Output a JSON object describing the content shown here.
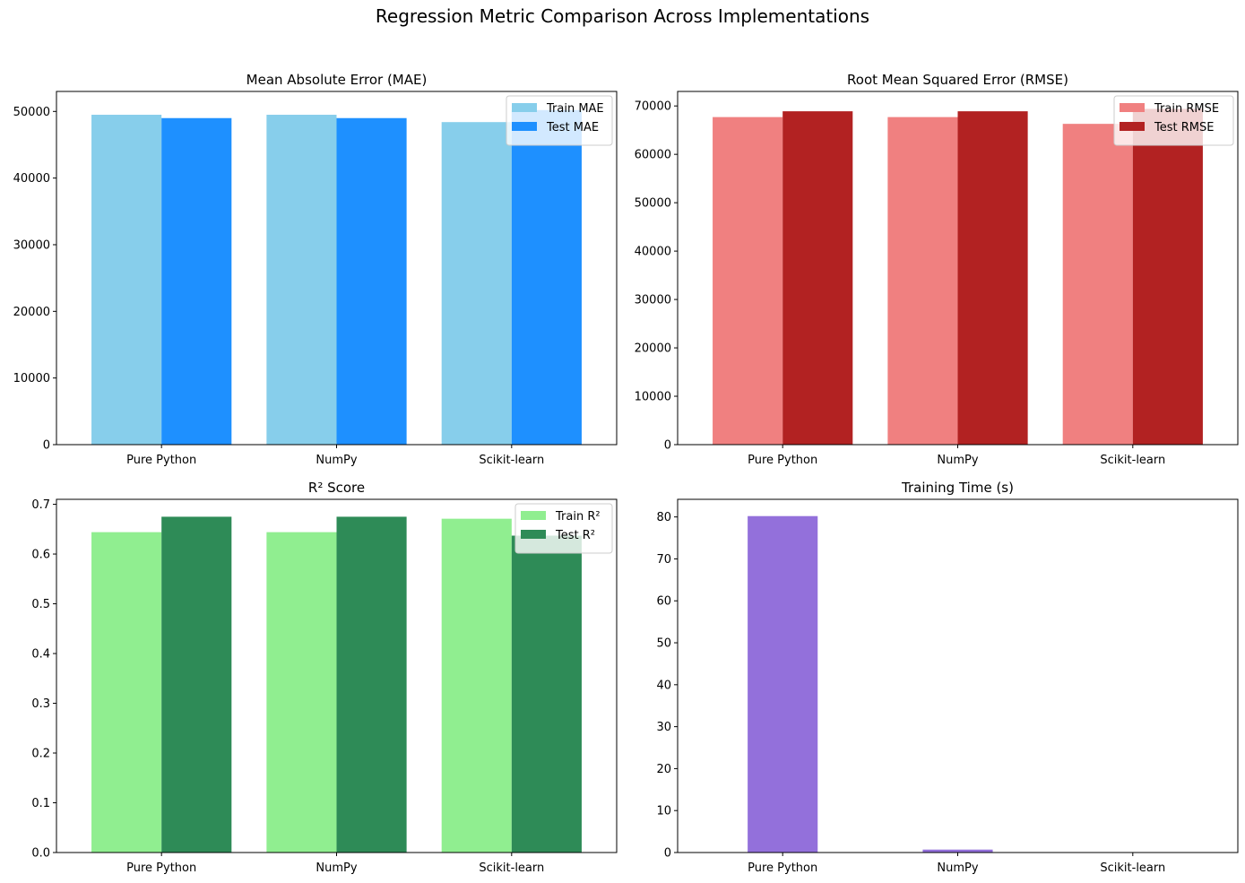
{
  "suptitle": "Regression Metric Comparison Across Implementations",
  "chart_data": [
    {
      "type": "bar",
      "title": "Mean Absolute Error (MAE)",
      "categories": [
        "Pure Python",
        "NumPy",
        "Scikit-learn"
      ],
      "series": [
        {
          "name": "Train MAE",
          "values": [
            49500,
            49500,
            48400
          ],
          "color": "#87CEEB"
        },
        {
          "name": "Test MAE",
          "values": [
            49000,
            49000,
            50200
          ],
          "color": "#1E90FF"
        }
      ],
      "ylim": [
        0,
        53000
      ],
      "yticks": [
        0,
        10000,
        20000,
        30000,
        40000,
        50000
      ],
      "legend": "top-right"
    },
    {
      "type": "bar",
      "title": "Root Mean Squared Error (RMSE)",
      "categories": [
        "Pure Python",
        "NumPy",
        "Scikit-learn"
      ],
      "series": [
        {
          "name": "Train RMSE",
          "values": [
            67700,
            67700,
            66300
          ],
          "color": "#F08080"
        },
        {
          "name": "Test RMSE",
          "values": [
            68900,
            68900,
            69400
          ],
          "color": "#B22222"
        }
      ],
      "ylim": [
        0,
        73000
      ],
      "yticks": [
        0,
        10000,
        20000,
        30000,
        40000,
        50000,
        60000,
        70000
      ],
      "legend": "top-right"
    },
    {
      "type": "bar",
      "title": "R² Score",
      "categories": [
        "Pure Python",
        "NumPy",
        "Scikit-learn"
      ],
      "series": [
        {
          "name": "Train R²",
          "values": [
            0.644,
            0.644,
            0.671
          ],
          "color": "#90EE90"
        },
        {
          "name": "Test R²",
          "values": [
            0.675,
            0.675,
            0.637
          ],
          "color": "#2E8B57"
        }
      ],
      "ylim": [
        0,
        0.71
      ],
      "yticks": [
        0.0,
        0.1,
        0.2,
        0.3,
        0.4,
        0.5,
        0.6,
        0.7
      ],
      "tickDecimals": 1,
      "legend": "top-right"
    },
    {
      "type": "bar",
      "title": "Training Time (s)",
      "categories": [
        "Pure Python",
        "NumPy",
        "Scikit-learn"
      ],
      "series": [
        {
          "values": [
            80.2,
            0.7,
            0.02
          ],
          "color": "#9370DB"
        }
      ],
      "ylim": [
        0,
        84.2
      ],
      "yticks": [
        0,
        10,
        20,
        30,
        40,
        50,
        60,
        70,
        80
      ]
    }
  ]
}
